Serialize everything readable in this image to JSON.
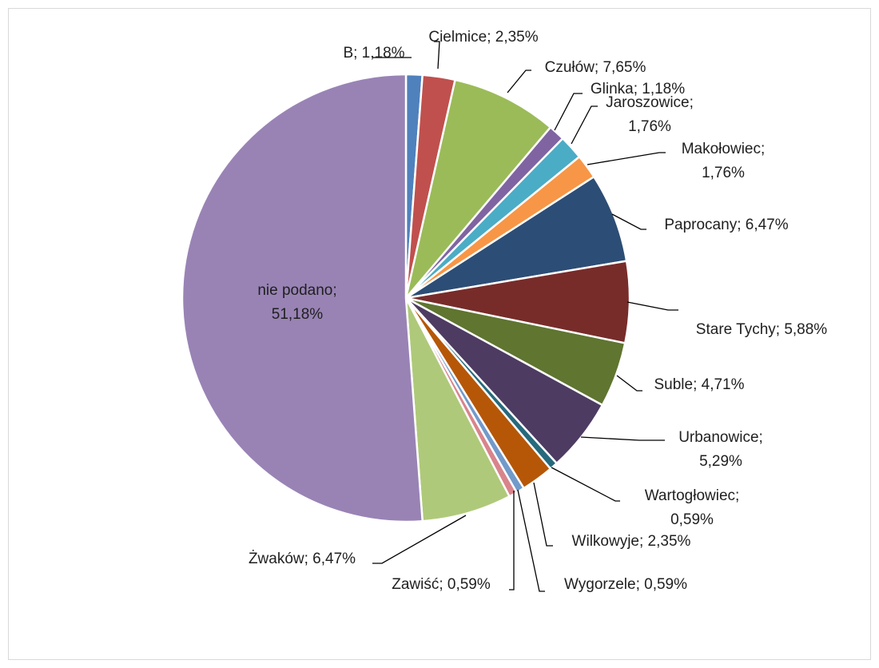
{
  "chart_data": {
    "type": "pie",
    "title": "",
    "legend": "none",
    "slices": [
      {
        "name": "B",
        "value": 1.18,
        "display": "1,18%",
        "color": "#4f81bd"
      },
      {
        "name": "Cielmice",
        "value": 2.35,
        "display": "2,35%",
        "color": "#c0504d"
      },
      {
        "name": "Czułów",
        "value": 7.65,
        "display": "7,65%",
        "color": "#9bbb59"
      },
      {
        "name": "Glinka",
        "value": 1.18,
        "display": "1,18%",
        "color": "#8064a2"
      },
      {
        "name": "Jaroszowice",
        "value": 1.76,
        "display": "1,76%",
        "color": "#4bacc6"
      },
      {
        "name": "Makołowiec",
        "value": 1.76,
        "display": "1,76%",
        "color": "#f79646"
      },
      {
        "name": "Paprocany",
        "value": 6.47,
        "display": "6,47%",
        "color": "#2c4d75"
      },
      {
        "name": "Stare Tychy",
        "value": 5.88,
        "display": "5,88%",
        "color": "#772c2a"
      },
      {
        "name": "Suble",
        "value": 4.71,
        "display": "4,71%",
        "color": "#5f7530"
      },
      {
        "name": "Urbanowice",
        "value": 5.29,
        "display": "5,29%",
        "color": "#4d3b62"
      },
      {
        "name": "Wartogłowiec",
        "value": 0.59,
        "display": "0,59%",
        "color": "#276a7c"
      },
      {
        "name": "Wilkowyje",
        "value": 2.35,
        "display": "2,35%",
        "color": "#b65708"
      },
      {
        "name": "Wygorzele",
        "value": 0.59,
        "display": "0,59%",
        "color": "#729aca"
      },
      {
        "name": "Zawiść",
        "value": 0.59,
        "display": "0,59%",
        "color": "#d9848c"
      },
      {
        "name": "Żwaków",
        "value": 6.47,
        "display": "6,47%",
        "color": "#afc97a"
      },
      {
        "name": "nie podano",
        "value": 51.18,
        "display": "51,18%",
        "color": "#9983b5"
      }
    ]
  }
}
